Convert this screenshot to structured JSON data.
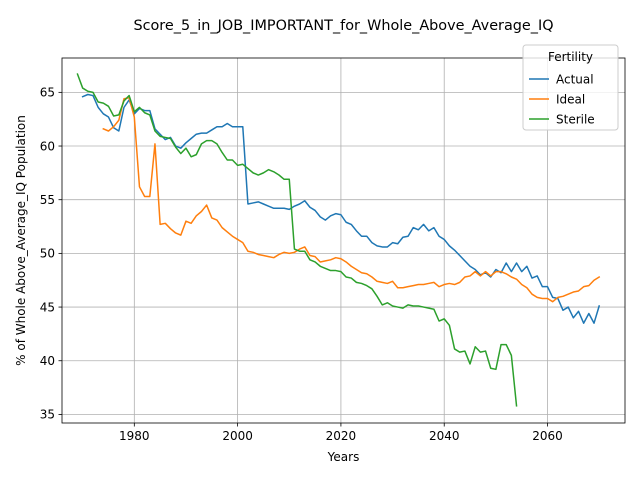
{
  "chart_data": {
    "type": "line",
    "title": "Score_5_in_JOB_IMPORTANT_for_Whole_Above_Average_IQ",
    "xlabel": "Years",
    "ylabel": "% of Whole Above_Average_IQ Population",
    "xlim": [
      1966,
      2075
    ],
    "ylim": [
      34.2,
      68.2
    ],
    "xticks": [
      1980,
      2000,
      2020,
      2040,
      2060
    ],
    "yticks": [
      35,
      40,
      45,
      50,
      55,
      60,
      65
    ],
    "grid": true,
    "legend": {
      "title": "Fertility",
      "placement": "top-right"
    },
    "series": [
      {
        "name": "Actual",
        "color": "#1f77b4",
        "points": [
          [
            1970,
            64.6
          ],
          [
            1971,
            64.8
          ],
          [
            1972,
            64.7
          ],
          [
            1973,
            63.6
          ],
          [
            1974,
            63.0
          ],
          [
            1975,
            62.7
          ],
          [
            1976,
            61.7
          ],
          [
            1977,
            61.4
          ],
          [
            1978,
            63.6
          ],
          [
            1979,
            64.3
          ],
          [
            1980,
            63.0
          ],
          [
            1981,
            63.5
          ],
          [
            1982,
            63.3
          ],
          [
            1983,
            63.3
          ],
          [
            1984,
            61.6
          ],
          [
            1985,
            61.1
          ],
          [
            1986,
            60.6
          ],
          [
            1987,
            60.8
          ],
          [
            1988,
            60.0
          ],
          [
            1989,
            59.8
          ],
          [
            1990,
            60.3
          ],
          [
            1991,
            60.7
          ],
          [
            1992,
            61.1
          ],
          [
            1993,
            61.2
          ],
          [
            1994,
            61.2
          ],
          [
            1995,
            61.5
          ],
          [
            1996,
            61.8
          ],
          [
            1997,
            61.8
          ],
          [
            1998,
            62.1
          ],
          [
            1999,
            61.8
          ],
          [
            2000,
            61.8
          ],
          [
            2001,
            61.8
          ],
          [
            2002,
            54.6
          ],
          [
            2003,
            54.7
          ],
          [
            2004,
            54.8
          ],
          [
            2005,
            54.6
          ],
          [
            2006,
            54.4
          ],
          [
            2007,
            54.2
          ],
          [
            2008,
            54.2
          ],
          [
            2009,
            54.2
          ],
          [
            2010,
            54.1
          ],
          [
            2011,
            54.4
          ],
          [
            2012,
            54.6
          ],
          [
            2013,
            54.9
          ],
          [
            2014,
            54.3
          ],
          [
            2015,
            54.0
          ],
          [
            2016,
            53.4
          ],
          [
            2017,
            53.1
          ],
          [
            2018,
            53.5
          ],
          [
            2019,
            53.7
          ],
          [
            2020,
            53.6
          ],
          [
            2021,
            52.9
          ],
          [
            2022,
            52.7
          ],
          [
            2023,
            52.1
          ],
          [
            2024,
            51.6
          ],
          [
            2025,
            51.6
          ],
          [
            2026,
            51.0
          ],
          [
            2027,
            50.7
          ],
          [
            2028,
            50.6
          ],
          [
            2029,
            50.6
          ],
          [
            2030,
            51.0
          ],
          [
            2031,
            50.9
          ],
          [
            2032,
            51.5
          ],
          [
            2033,
            51.6
          ],
          [
            2034,
            52.4
          ],
          [
            2035,
            52.2
          ],
          [
            2036,
            52.7
          ],
          [
            2037,
            52.1
          ],
          [
            2038,
            52.4
          ],
          [
            2039,
            51.6
          ],
          [
            2040,
            51.3
          ],
          [
            2041,
            50.7
          ],
          [
            2042,
            50.3
          ],
          [
            2043,
            49.8
          ],
          [
            2044,
            49.3
          ],
          [
            2045,
            48.8
          ],
          [
            2046,
            48.5
          ],
          [
            2047,
            48.0
          ],
          [
            2048,
            48.2
          ],
          [
            2049,
            47.8
          ],
          [
            2050,
            48.5
          ],
          [
            2051,
            48.2
          ],
          [
            2052,
            49.1
          ],
          [
            2053,
            48.3
          ],
          [
            2054,
            49.1
          ],
          [
            2055,
            48.3
          ],
          [
            2056,
            48.8
          ],
          [
            2057,
            47.7
          ],
          [
            2058,
            47.9
          ],
          [
            2059,
            46.9
          ],
          [
            2060,
            46.9
          ],
          [
            2061,
            45.9
          ],
          [
            2062,
            45.8
          ],
          [
            2063,
            44.7
          ],
          [
            2064,
            45.0
          ],
          [
            2065,
            44.0
          ],
          [
            2066,
            44.6
          ],
          [
            2067,
            43.5
          ],
          [
            2068,
            44.4
          ],
          [
            2069,
            43.5
          ],
          [
            2070,
            45.1
          ]
        ]
      },
      {
        "name": "Ideal",
        "color": "#ff7f0e",
        "points": [
          [
            1974,
            61.6
          ],
          [
            1975,
            61.4
          ],
          [
            1976,
            61.8
          ],
          [
            1977,
            62.4
          ],
          [
            1978,
            64.4
          ],
          [
            1979,
            64.5
          ],
          [
            1980,
            62.7
          ],
          [
            1981,
            56.2
          ],
          [
            1982,
            55.3
          ],
          [
            1983,
            55.3
          ],
          [
            1984,
            60.2
          ],
          [
            1985,
            52.7
          ],
          [
            1986,
            52.8
          ],
          [
            1987,
            52.3
          ],
          [
            1988,
            51.9
          ],
          [
            1989,
            51.7
          ],
          [
            1990,
            53.0
          ],
          [
            1991,
            52.8
          ],
          [
            1992,
            53.5
          ],
          [
            1993,
            53.9
          ],
          [
            1994,
            54.5
          ],
          [
            1995,
            53.3
          ],
          [
            1996,
            53.1
          ],
          [
            1997,
            52.4
          ],
          [
            1998,
            52.0
          ],
          [
            1999,
            51.6
          ],
          [
            2000,
            51.3
          ],
          [
            2001,
            51.0
          ],
          [
            2002,
            50.2
          ],
          [
            2003,
            50.1
          ],
          [
            2004,
            49.9
          ],
          [
            2005,
            49.8
          ],
          [
            2006,
            49.7
          ],
          [
            2007,
            49.6
          ],
          [
            2008,
            49.9
          ],
          [
            2009,
            50.1
          ],
          [
            2010,
            50.0
          ],
          [
            2011,
            50.1
          ],
          [
            2012,
            50.4
          ],
          [
            2013,
            50.6
          ],
          [
            2014,
            49.8
          ],
          [
            2015,
            49.7
          ],
          [
            2016,
            49.2
          ],
          [
            2017,
            49.3
          ],
          [
            2018,
            49.4
          ],
          [
            2019,
            49.6
          ],
          [
            2020,
            49.5
          ],
          [
            2021,
            49.2
          ],
          [
            2022,
            48.8
          ],
          [
            2023,
            48.5
          ],
          [
            2024,
            48.2
          ],
          [
            2025,
            48.1
          ],
          [
            2026,
            47.8
          ],
          [
            2027,
            47.4
          ],
          [
            2028,
            47.3
          ],
          [
            2029,
            47.2
          ],
          [
            2030,
            47.4
          ],
          [
            2031,
            46.8
          ],
          [
            2032,
            46.8
          ],
          [
            2033,
            46.9
          ],
          [
            2034,
            47.0
          ],
          [
            2035,
            47.1
          ],
          [
            2036,
            47.1
          ],
          [
            2037,
            47.2
          ],
          [
            2038,
            47.3
          ],
          [
            2039,
            46.9
          ],
          [
            2040,
            47.1
          ],
          [
            2041,
            47.2
          ],
          [
            2042,
            47.1
          ],
          [
            2043,
            47.3
          ],
          [
            2044,
            47.8
          ],
          [
            2045,
            47.9
          ],
          [
            2046,
            48.3
          ],
          [
            2047,
            47.9
          ],
          [
            2048,
            48.3
          ],
          [
            2049,
            47.9
          ],
          [
            2050,
            48.3
          ],
          [
            2051,
            48.3
          ],
          [
            2052,
            48.1
          ],
          [
            2053,
            47.8
          ],
          [
            2054,
            47.6
          ],
          [
            2055,
            47.1
          ],
          [
            2056,
            46.8
          ],
          [
            2057,
            46.2
          ],
          [
            2058,
            45.9
          ],
          [
            2059,
            45.8
          ],
          [
            2060,
            45.8
          ],
          [
            2061,
            45.5
          ],
          [
            2062,
            45.9
          ],
          [
            2063,
            46.0
          ],
          [
            2064,
            46.2
          ],
          [
            2065,
            46.4
          ],
          [
            2066,
            46.5
          ],
          [
            2067,
            46.9
          ],
          [
            2068,
            47.0
          ],
          [
            2069,
            47.5
          ],
          [
            2070,
            47.8
          ]
        ]
      },
      {
        "name": "Sterile",
        "color": "#2ca02c",
        "points": [
          [
            1969,
            66.7
          ],
          [
            1970,
            65.4
          ],
          [
            1971,
            65.1
          ],
          [
            1972,
            65.0
          ],
          [
            1973,
            64.1
          ],
          [
            1974,
            64.0
          ],
          [
            1975,
            63.7
          ],
          [
            1976,
            62.8
          ],
          [
            1977,
            62.9
          ],
          [
            1978,
            64.2
          ],
          [
            1979,
            64.7
          ],
          [
            1980,
            63.2
          ],
          [
            1981,
            63.6
          ],
          [
            1982,
            63.1
          ],
          [
            1983,
            62.9
          ],
          [
            1984,
            61.4
          ],
          [
            1985,
            60.9
          ],
          [
            1986,
            60.8
          ],
          [
            1987,
            60.7
          ],
          [
            1988,
            59.9
          ],
          [
            1989,
            59.3
          ],
          [
            1990,
            59.8
          ],
          [
            1991,
            59.0
          ],
          [
            1992,
            59.2
          ],
          [
            1993,
            60.2
          ],
          [
            1994,
            60.5
          ],
          [
            1995,
            60.5
          ],
          [
            1996,
            60.2
          ],
          [
            1997,
            59.4
          ],
          [
            1998,
            58.7
          ],
          [
            1999,
            58.7
          ],
          [
            2000,
            58.2
          ],
          [
            2001,
            58.3
          ],
          [
            2002,
            57.9
          ],
          [
            2003,
            57.5
          ],
          [
            2004,
            57.3
          ],
          [
            2005,
            57.5
          ],
          [
            2006,
            57.8
          ],
          [
            2007,
            57.6
          ],
          [
            2008,
            57.3
          ],
          [
            2009,
            56.9
          ],
          [
            2010,
            56.9
          ],
          [
            2011,
            50.4
          ],
          [
            2012,
            50.2
          ],
          [
            2013,
            50.2
          ],
          [
            2014,
            49.4
          ],
          [
            2015,
            49.2
          ],
          [
            2016,
            48.8
          ],
          [
            2017,
            48.6
          ],
          [
            2018,
            48.4
          ],
          [
            2019,
            48.4
          ],
          [
            2020,
            48.3
          ],
          [
            2021,
            47.8
          ],
          [
            2022,
            47.7
          ],
          [
            2023,
            47.3
          ],
          [
            2024,
            47.2
          ],
          [
            2025,
            47.0
          ],
          [
            2026,
            46.7
          ],
          [
            2027,
            46.0
          ],
          [
            2028,
            45.2
          ],
          [
            2029,
            45.4
          ],
          [
            2030,
            45.1
          ],
          [
            2031,
            45.0
          ],
          [
            2032,
            44.9
          ],
          [
            2033,
            45.2
          ],
          [
            2034,
            45.1
          ],
          [
            2035,
            45.1
          ],
          [
            2036,
            45.0
          ],
          [
            2037,
            44.9
          ],
          [
            2038,
            44.8
          ],
          [
            2039,
            43.7
          ],
          [
            2040,
            43.9
          ],
          [
            2041,
            43.3
          ],
          [
            2042,
            41.1
          ],
          [
            2043,
            40.8
          ],
          [
            2044,
            40.9
          ],
          [
            2045,
            39.7
          ],
          [
            2046,
            41.3
          ],
          [
            2047,
            40.8
          ],
          [
            2048,
            40.9
          ],
          [
            2049,
            39.3
          ],
          [
            2050,
            39.2
          ],
          [
            2051,
            41.5
          ],
          [
            2052,
            41.5
          ],
          [
            2053,
            40.5
          ],
          [
            2054,
            35.8
          ]
        ]
      }
    ]
  }
}
